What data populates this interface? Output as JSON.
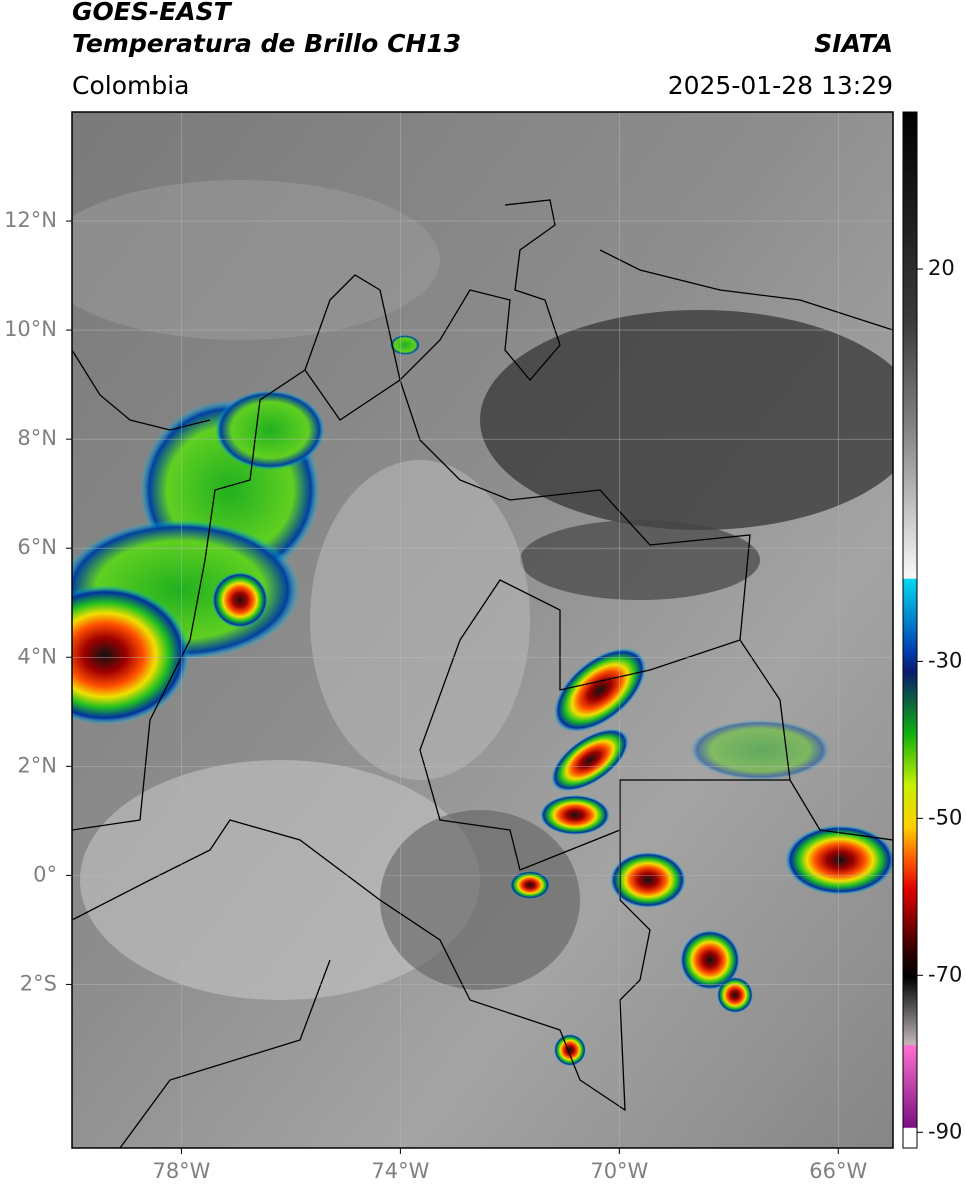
{
  "header": {
    "title_line1": "GOES-EAST",
    "title_line2": "Temperatura de Brillo CH13",
    "region": "Colombia",
    "source": "SIATA",
    "datetime": "2025-01-28 13:29"
  },
  "map": {
    "lonlim": [
      -80,
      -65
    ],
    "latlim": [
      -5,
      14
    ],
    "lat_ticks": [
      {
        "value": 12,
        "label": "12°N"
      },
      {
        "value": 10,
        "label": "10°N"
      },
      {
        "value": 8,
        "label": "8°N"
      },
      {
        "value": 6,
        "label": "6°N"
      },
      {
        "value": 4,
        "label": "4°N"
      },
      {
        "value": 2,
        "label": "2°N"
      },
      {
        "value": 0,
        "label": "0°"
      },
      {
        "value": -2,
        "label": "2°S"
      }
    ],
    "lon_ticks": [
      {
        "value": -78,
        "label": "78°W"
      },
      {
        "value": -74,
        "label": "74°W"
      },
      {
        "value": -70,
        "label": "70°W"
      },
      {
        "value": -66,
        "label": "66°W"
      }
    ],
    "grid": true
  },
  "colorbar": {
    "lim": [
      -92,
      40
    ],
    "ticks": [
      20,
      -30,
      -50,
      -70,
      -90
    ]
  }
}
